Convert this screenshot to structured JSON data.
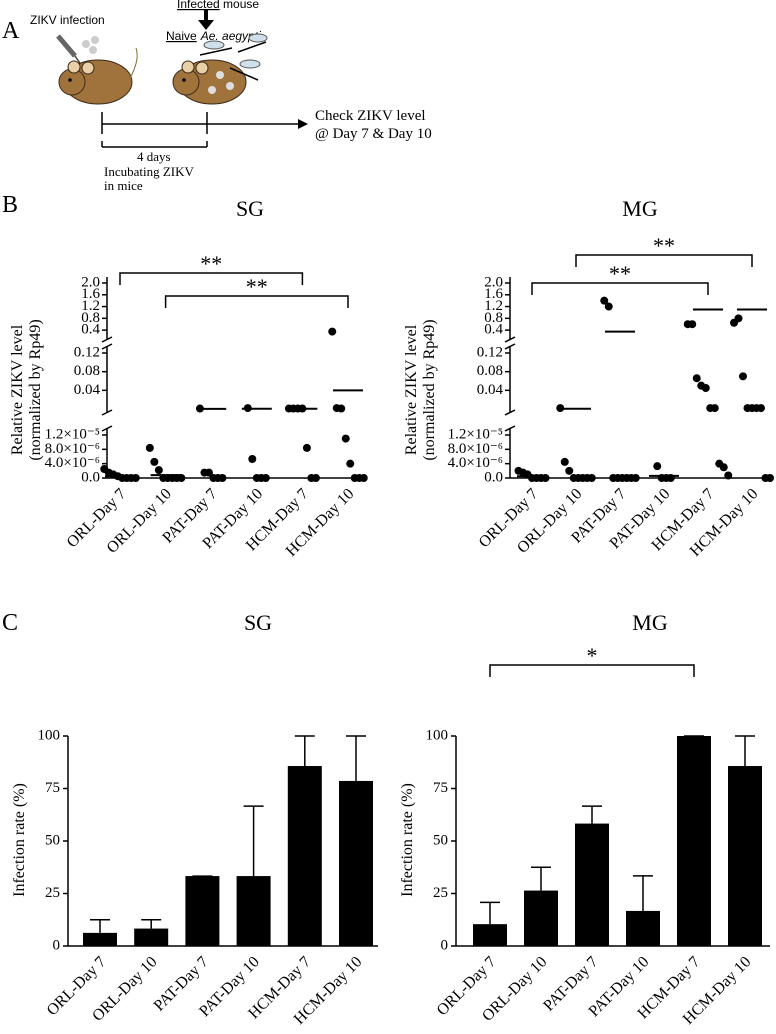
{
  "diagram": {
    "panel": "A",
    "zikv_infection": "ZIKV infection",
    "infected": "Infected",
    "mouse": " mouse",
    "naive": "Naive",
    "species": "Ae. aegypti",
    "check": "Check ZIKV level",
    "days": "@ Day 7 & Day 10",
    "duration": "4 days",
    "incubating": "Incubating ZIKV",
    "in_mice": "in mice"
  },
  "chart_data": [
    {
      "type": "scatter",
      "panel": "B",
      "title": "SG",
      "y_label": [
        "Relative ZIKV level",
        "(normalized by Rp49)"
      ],
      "categories": [
        "ORL-Day 7",
        "ORL-Day 10",
        "PAT-Day 7",
        "PAT-Day 10",
        "HCM-Day 7",
        "HCM-Day 10"
      ],
      "values": [
        [
          2.5e-06,
          1.5e-06,
          1e-06,
          5e-07,
          0,
          0,
          0,
          0
        ],
        [
          8.4e-06,
          4.5e-06,
          2.2e-06,
          0,
          0,
          0,
          0,
          0
        ],
        [
          0.001,
          1.5e-06,
          1.5e-06,
          0,
          0,
          0
        ],
        [
          0.002,
          5.3e-06,
          0,
          0,
          0
        ],
        [
          0.001,
          0.001,
          0.001,
          0.001,
          8.4e-06,
          0,
          0
        ],
        [
          0.35,
          0.002,
          0.001,
          1.1e-05,
          4e-06,
          0,
          0,
          0
        ]
      ],
      "means": [
        5e-07,
        8e-07,
        0.0002,
        0.0005,
        0.0006,
        0.04
      ],
      "color": "#000000",
      "y_segments": [
        {
          "ylim": [
            0,
            1.2e-05
          ],
          "yticks": [
            {
              "value": 0,
              "label": "0.0"
            },
            {
              "value": 4e-06,
              "label": "4.0×10⁻⁶"
            },
            {
              "value": 8e-06,
              "label": "8.0×10⁻⁶"
            },
            {
              "value": 1.2e-05,
              "label": "1.2×10⁻⁵"
            }
          ]
        },
        {
          "ylim": [
            0,
            0.12
          ],
          "yticks": [
            0.04,
            0.08,
            0.12
          ]
        },
        {
          "ylim": [
            0.2,
            2.0
          ],
          "yticks": [
            0.4,
            0.8,
            {
              "value": 1.2,
              "label": "1.2"
            },
            {
              "value": 1.6,
              "label": "1.6"
            },
            {
              "value": 2.0,
              "label": "2.0"
            }
          ]
        }
      ],
      "brackets": [
        {
          "from": 0,
          "to": 4,
          "text": "**"
        },
        {
          "from": 1,
          "to": 5,
          "text": "**"
        }
      ]
    },
    {
      "type": "scatter",
      "title": "MG",
      "y_label": [
        "Relative ZIKV level",
        "(normalized by Rp49)"
      ],
      "categories": [
        "ORL-Day 7",
        "ORL-Day 10",
        "PAT-Day 7",
        "PAT-Day 10",
        "HCM-Day 7",
        "HCM-Day 10"
      ],
      "values": [
        [
          2e-06,
          1.5e-06,
          1e-06,
          0,
          0,
          0,
          0
        ],
        [
          0.002,
          4.5e-06,
          2e-06,
          0,
          0,
          0,
          0,
          0
        ],
        [
          1.4,
          1.2,
          0,
          0,
          0,
          0,
          0,
          0
        ],
        [
          3.3e-06,
          0,
          0,
          0
        ],
        [
          0.6,
          0.6,
          0.066,
          0.05,
          0.045,
          0.002,
          0.002,
          4e-06,
          3e-06,
          7e-07
        ],
        [
          0.65,
          0.8,
          0.07,
          0.002,
          0.002,
          0.002,
          0.002,
          0,
          0
        ]
      ],
      "means": [
        5e-07,
        0.0005,
        0.35,
        6e-07,
        1.1,
        1.1
      ],
      "color": "#000000",
      "y_segments": [
        {
          "ylim": [
            0,
            1.2e-05
          ],
          "yticks": [
            {
              "value": 0,
              "label": "0.0"
            },
            {
              "value": 4e-06,
              "label": "4.0×10⁻⁶"
            },
            {
              "value": 8e-06,
              "label": "8.0×10⁻⁶"
            },
            {
              "value": 1.2e-05,
              "label": "1.2×10⁻⁵"
            }
          ]
        },
        {
          "ylim": [
            0,
            0.12
          ],
          "yticks": [
            0.04,
            0.08,
            0.12
          ]
        },
        {
          "ylim": [
            0.2,
            2.0
          ],
          "yticks": [
            0.4,
            0.8,
            {
              "value": 1.2,
              "label": "1.2"
            },
            {
              "value": 1.6,
              "label": "1.6"
            },
            {
              "value": 2.0,
              "label": "2.0"
            }
          ]
        }
      ],
      "brackets": [
        {
          "from": 1,
          "to": 5,
          "text": "**"
        },
        {
          "from": 0,
          "to": 4,
          "text": "**"
        }
      ]
    },
    {
      "type": "bar",
      "panel": "C",
      "title": "SG",
      "y_label": "Infection rate (%)",
      "categories": [
        "ORL-Day 7",
        "ORL-Day 10",
        "PAT-Day 7",
        "PAT-Day 10",
        "HCM-Day 7",
        "HCM-Day 10"
      ],
      "values": [
        6.25,
        8.3,
        33.3,
        33.3,
        85.7,
        78.6
      ],
      "errors": [
        6.25,
        4.2,
        0,
        33.3,
        14.3,
        21.4
      ],
      "color": "#000000",
      "ylim": [
        0,
        100
      ],
      "yticks": [
        0,
        25,
        50,
        75,
        100
      ]
    },
    {
      "type": "bar",
      "title": "MG",
      "y_label": "Infection rate (%)",
      "categories": [
        "ORL-Day 7",
        "ORL-Day 10",
        "PAT-Day 7",
        "PAT-Day 10",
        "HCM-Day 7",
        "HCM-Day 10"
      ],
      "values": [
        10.4,
        26.4,
        58.3,
        16.7,
        100,
        85.7
      ],
      "errors": [
        10.4,
        11.1,
        8.3,
        16.7,
        0,
        14.3
      ],
      "color": "#000000",
      "ylim": [
        0,
        100
      ],
      "yticks": [
        0,
        25,
        50,
        75,
        100
      ],
      "brackets": [
        {
          "from": 0,
          "to": 4,
          "text": "*"
        }
      ]
    }
  ]
}
